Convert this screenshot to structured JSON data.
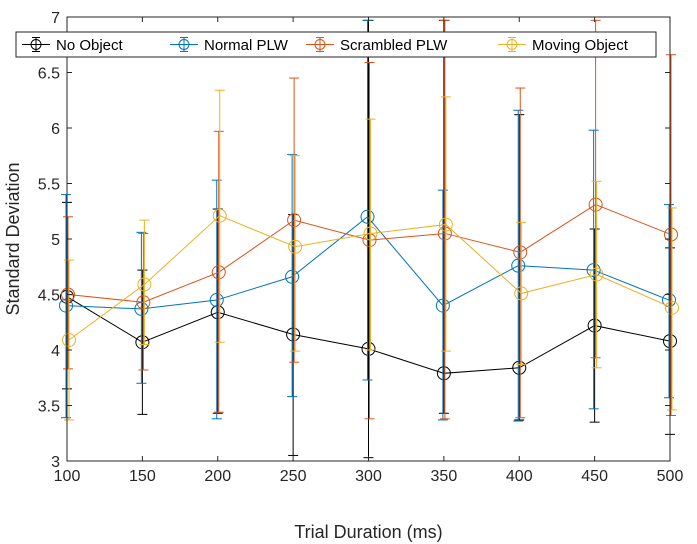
{
  "chart_data": {
    "type": "line",
    "title": "",
    "xlabel": "Trial Duration (ms)",
    "ylabel": "Standard Deviation",
    "x": [
      100,
      150,
      200,
      250,
      300,
      350,
      400,
      450,
      500
    ],
    "xlim": [
      100,
      500
    ],
    "ylim": [
      3,
      7
    ],
    "xticks": [
      100,
      150,
      200,
      250,
      300,
      350,
      400,
      450,
      500
    ],
    "yticks": [
      3,
      3.5,
      4,
      4.5,
      5,
      5.5,
      6,
      6.5,
      7
    ],
    "ytick_labels": [
      "3",
      "3.5",
      "4",
      "4.5",
      "5",
      "5.5",
      "6",
      "6.5",
      "7"
    ],
    "grid": false,
    "legend_position": "top",
    "legend_orientation": "horizontal",
    "series": [
      {
        "name": "No Object",
        "color": "#000000",
        "x_offset": 0,
        "values": [
          4.48,
          4.07,
          4.34,
          4.14,
          4.01,
          3.79,
          3.84,
          4.22,
          4.08
        ],
        "lower": [
          3.65,
          3.42,
          3.43,
          3.05,
          3.03,
          3.43,
          3.37,
          3.35,
          3.24
        ],
        "upper": [
          5.33,
          4.72,
          5.27,
          5.22,
          6.97,
          6.97,
          6.12,
          5.09,
          4.92
        ]
      },
      {
        "name": "Normal PLW",
        "color": "#0072BD",
        "x_offset": -1,
        "values": [
          4.4,
          4.37,
          4.45,
          4.66,
          5.2,
          4.4,
          4.76,
          4.72,
          4.45
        ],
        "lower": [
          3.39,
          3.7,
          3.38,
          3.58,
          3.73,
          3.37,
          3.36,
          3.47,
          3.57
        ],
        "upper": [
          5.4,
          5.06,
          5.53,
          5.76,
          6.97,
          5.44,
          6.16,
          5.98,
          5.31
        ]
      },
      {
        "name": "Scrambled PLW",
        "color": "#D95319",
        "x_offset": 1,
        "values": [
          4.5,
          4.43,
          4.7,
          5.17,
          4.99,
          5.05,
          4.88,
          5.31,
          5.04
        ],
        "lower": [
          3.83,
          3.82,
          3.44,
          3.89,
          3.38,
          3.38,
          3.39,
          3.93,
          3.41
        ],
        "upper": [
          5.2,
          5.05,
          5.97,
          6.45,
          6.59,
          6.97,
          6.36,
          6.97,
          6.66
        ]
      },
      {
        "name": "Moving Object",
        "color": "#EDB120",
        "x_offset": 2,
        "values": [
          4.09,
          4.59,
          5.21,
          4.93,
          5.05,
          5.13,
          4.51,
          4.68,
          4.38
        ],
        "lower": [
          3.37,
          4.05,
          4.07,
          3.99,
          4.0,
          3.99,
          3.87,
          3.84,
          3.46
        ],
        "upper": [
          4.81,
          5.17,
          6.34,
          5.75,
          6.08,
          6.28,
          5.15,
          5.52,
          5.28
        ]
      }
    ]
  }
}
